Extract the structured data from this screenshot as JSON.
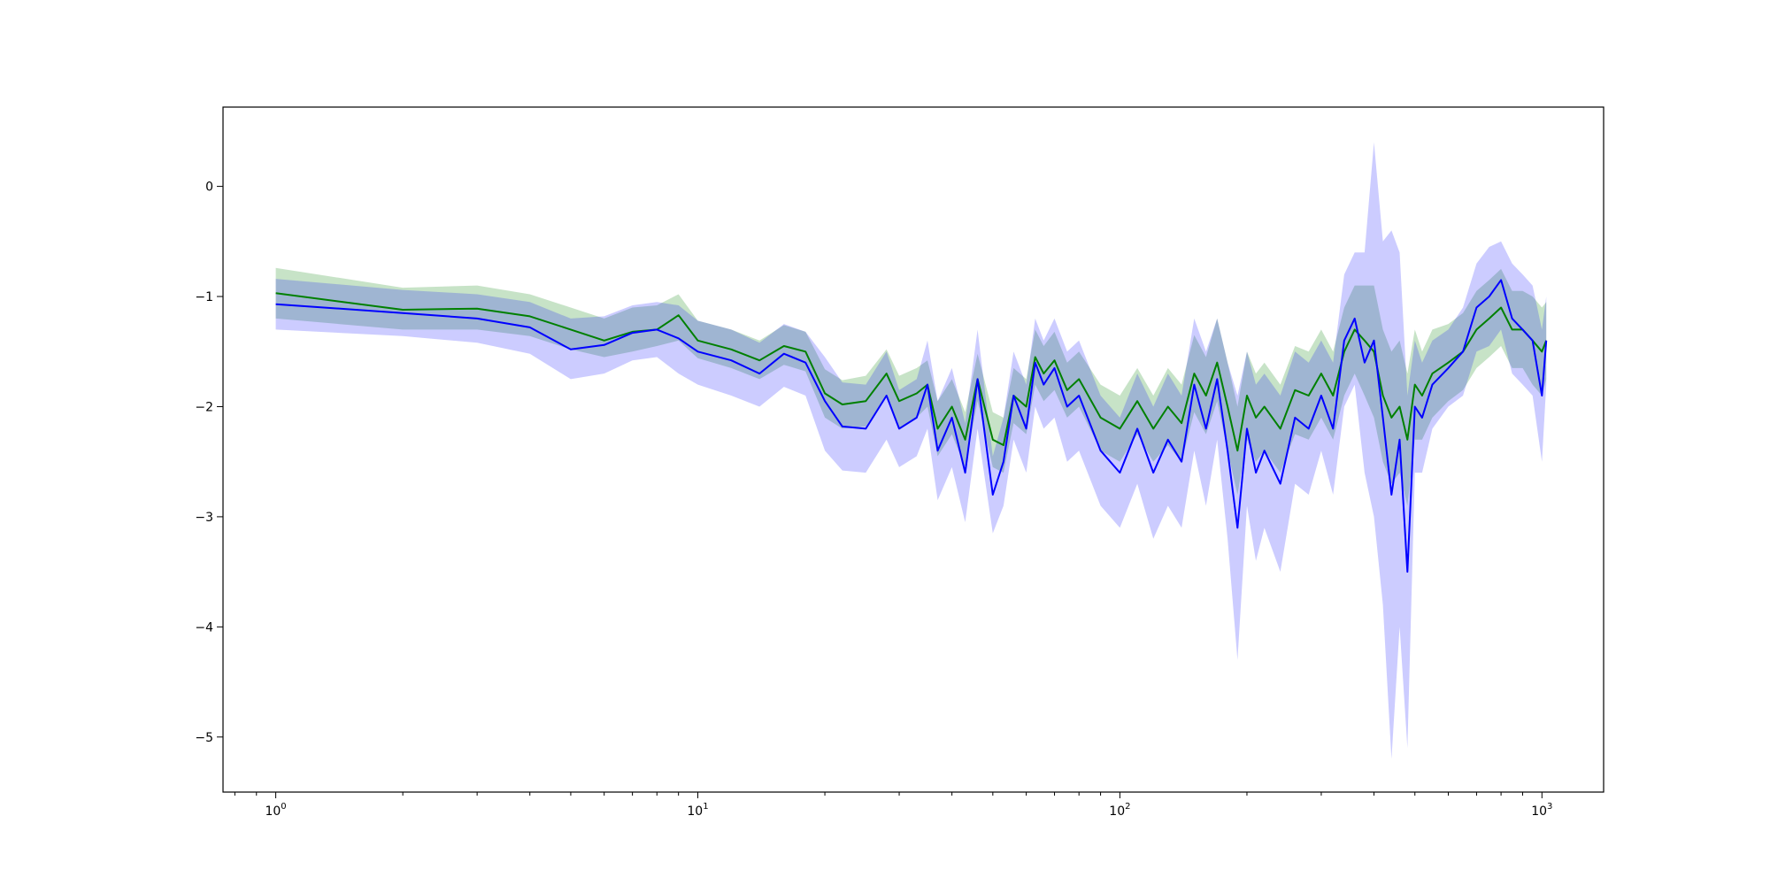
{
  "chart_data": {
    "type": "line",
    "title": "",
    "xlabel": "",
    "ylabel": "",
    "xscale": "log",
    "xlim": [
      0.75,
      1400
    ],
    "ylim": [
      -5.5,
      0.72
    ],
    "grid": false,
    "x_ticks": [
      {
        "value": 1,
        "base": "10",
        "exp": "0"
      },
      {
        "value": 10,
        "base": "10",
        "exp": "1"
      },
      {
        "value": 100,
        "base": "10",
        "exp": "2"
      },
      {
        "value": 1000,
        "base": "10",
        "exp": "3"
      }
    ],
    "y_ticks": [
      {
        "value": 0,
        "label": "0"
      },
      {
        "value": -1,
        "label": "−1"
      },
      {
        "value": -2,
        "label": "−2"
      },
      {
        "value": -3,
        "label": "−3"
      },
      {
        "value": -4,
        "label": "−4"
      },
      {
        "value": -5,
        "label": "−5"
      }
    ],
    "series": [
      {
        "color": "#008000",
        "band_color": "#008000",
        "band_opacity": 0.22,
        "x": [
          1,
          2,
          3,
          4,
          5,
          6,
          7,
          8,
          9,
          10,
          12,
          14,
          16,
          18,
          20,
          22,
          25,
          28,
          30,
          33,
          35,
          37,
          40,
          43,
          46,
          50,
          53,
          56,
          60,
          63,
          66,
          70,
          75,
          80,
          90,
          100,
          110,
          120,
          130,
          140,
          150,
          160,
          170,
          180,
          190,
          200,
          210,
          220,
          240,
          260,
          280,
          300,
          320,
          340,
          360,
          380,
          400,
          420,
          440,
          460,
          480,
          500,
          520,
          550,
          600,
          650,
          700,
          750,
          800,
          850,
          900,
          950,
          1000,
          1024
        ],
        "y": [
          -0.97,
          -1.12,
          -1.11,
          -1.18,
          -1.3,
          -1.4,
          -1.32,
          -1.3,
          -1.17,
          -1.4,
          -1.48,
          -1.58,
          -1.45,
          -1.5,
          -1.88,
          -1.98,
          -1.95,
          -1.7,
          -1.95,
          -1.88,
          -1.8,
          -2.2,
          -2.0,
          -2.3,
          -1.75,
          -2.3,
          -2.35,
          -1.9,
          -2.0,
          -1.55,
          -1.7,
          -1.58,
          -1.85,
          -1.75,
          -2.1,
          -2.2,
          -1.95,
          -2.2,
          -2.0,
          -2.15,
          -1.7,
          -1.9,
          -1.6,
          -2.0,
          -2.4,
          -1.9,
          -2.1,
          -2.0,
          -2.2,
          -1.85,
          -1.9,
          -1.7,
          -1.9,
          -1.5,
          -1.3,
          -1.4,
          -1.5,
          -1.9,
          -2.1,
          -2.0,
          -2.3,
          -1.8,
          -1.9,
          -1.7,
          -1.6,
          -1.5,
          -1.3,
          -1.2,
          -1.1,
          -1.3,
          -1.3,
          -1.4,
          -1.5,
          -1.4
        ],
        "lower": [
          -1.2,
          -1.3,
          -1.3,
          -1.36,
          -1.48,
          -1.55,
          -1.5,
          -1.45,
          -1.4,
          -1.56,
          -1.65,
          -1.75,
          -1.62,
          -1.68,
          -2.1,
          -2.2,
          -2.18,
          -1.9,
          -2.2,
          -2.1,
          -2.0,
          -2.45,
          -2.25,
          -2.55,
          -1.95,
          -2.55,
          -2.6,
          -2.15,
          -2.25,
          -1.8,
          -1.95,
          -1.85,
          -2.1,
          -2.0,
          -2.4,
          -2.5,
          -2.25,
          -2.5,
          -2.35,
          -2.5,
          -2.05,
          -2.25,
          -1.95,
          -2.4,
          -2.8,
          -2.3,
          -2.5,
          -2.4,
          -2.6,
          -2.25,
          -2.3,
          -2.1,
          -2.3,
          -1.9,
          -1.7,
          -1.9,
          -2.1,
          -2.5,
          -2.7,
          -2.6,
          -2.9,
          -2.3,
          -2.3,
          -2.1,
          -1.95,
          -1.85,
          -1.65,
          -1.55,
          -1.45,
          -1.65,
          -1.65,
          -1.8,
          -1.9,
          -1.75
        ],
        "upper": [
          -0.74,
          -0.92,
          -0.9,
          -0.98,
          -1.1,
          -1.2,
          -1.1,
          -1.08,
          -0.98,
          -1.22,
          -1.3,
          -1.4,
          -1.26,
          -1.32,
          -1.66,
          -1.76,
          -1.72,
          -1.48,
          -1.72,
          -1.65,
          -1.58,
          -1.95,
          -1.75,
          -2.05,
          -1.52,
          -2.05,
          -2.1,
          -1.65,
          -1.75,
          -1.3,
          -1.45,
          -1.32,
          -1.6,
          -1.5,
          -1.8,
          -1.9,
          -1.65,
          -1.9,
          -1.65,
          -1.8,
          -1.35,
          -1.55,
          -1.2,
          -1.6,
          -2.0,
          -1.5,
          -1.7,
          -1.6,
          -1.8,
          -1.45,
          -1.5,
          -1.3,
          -1.5,
          -1.1,
          -0.9,
          -0.9,
          -0.9,
          -1.3,
          -1.5,
          -1.4,
          -1.7,
          -1.3,
          -1.5,
          -1.3,
          -1.25,
          -1.15,
          -0.95,
          -0.85,
          -0.75,
          -0.95,
          -0.95,
          -1.0,
          -1.1,
          -1.05
        ]
      },
      {
        "color": "#0000ff",
        "band_color": "#0000ff",
        "band_opacity": 0.2,
        "x": [
          1,
          2,
          3,
          4,
          5,
          6,
          7,
          8,
          9,
          10,
          12,
          14,
          16,
          18,
          20,
          22,
          25,
          28,
          30,
          33,
          35,
          37,
          40,
          43,
          46,
          50,
          53,
          56,
          60,
          63,
          66,
          70,
          75,
          80,
          90,
          100,
          110,
          120,
          130,
          140,
          150,
          160,
          170,
          180,
          190,
          200,
          210,
          220,
          240,
          260,
          280,
          300,
          320,
          340,
          360,
          380,
          400,
          420,
          440,
          460,
          480,
          500,
          520,
          550,
          600,
          650,
          700,
          750,
          800,
          850,
          900,
          950,
          1000,
          1024
        ],
        "y": [
          -1.07,
          -1.15,
          -1.2,
          -1.28,
          -1.48,
          -1.44,
          -1.33,
          -1.3,
          -1.38,
          -1.5,
          -1.58,
          -1.7,
          -1.52,
          -1.6,
          -1.95,
          -2.18,
          -2.2,
          -1.9,
          -2.2,
          -2.1,
          -1.8,
          -2.4,
          -2.1,
          -2.6,
          -1.75,
          -2.8,
          -2.5,
          -1.9,
          -2.2,
          -1.6,
          -1.8,
          -1.65,
          -2.0,
          -1.9,
          -2.4,
          -2.6,
          -2.2,
          -2.6,
          -2.3,
          -2.5,
          -1.8,
          -2.2,
          -1.75,
          -2.4,
          -3.1,
          -2.2,
          -2.6,
          -2.4,
          -2.7,
          -2.1,
          -2.2,
          -1.9,
          -2.2,
          -1.4,
          -1.2,
          -1.6,
          -1.4,
          -2.1,
          -2.8,
          -2.3,
          -3.5,
          -2.0,
          -2.1,
          -1.8,
          -1.65,
          -1.5,
          -1.1,
          -1.0,
          -0.85,
          -1.2,
          -1.3,
          -1.4,
          -1.9,
          -1.4
        ],
        "lower": [
          -1.3,
          -1.36,
          -1.42,
          -1.52,
          -1.75,
          -1.7,
          -1.58,
          -1.55,
          -1.7,
          -1.8,
          -1.9,
          -2.0,
          -1.82,
          -1.9,
          -2.4,
          -2.58,
          -2.6,
          -2.3,
          -2.55,
          -2.45,
          -2.2,
          -2.85,
          -2.55,
          -3.05,
          -2.2,
          -3.15,
          -2.9,
          -2.3,
          -2.6,
          -2.0,
          -2.2,
          -2.1,
          -2.5,
          -2.4,
          -2.9,
          -3.1,
          -2.7,
          -3.2,
          -2.9,
          -3.1,
          -2.4,
          -2.9,
          -2.3,
          -3.2,
          -4.3,
          -2.9,
          -3.4,
          -3.1,
          -3.5,
          -2.7,
          -2.8,
          -2.4,
          -2.8,
          -2.0,
          -1.8,
          -2.6,
          -3.0,
          -3.8,
          -5.2,
          -4.0,
          -5.1,
          -2.6,
          -2.6,
          -2.2,
          -2.0,
          -1.9,
          -1.5,
          -1.45,
          -1.3,
          -1.7,
          -1.8,
          -1.9,
          -2.5,
          -1.8
        ],
        "upper": [
          -0.84,
          -0.94,
          -0.98,
          -1.05,
          -1.2,
          -1.18,
          -1.08,
          -1.05,
          -1.08,
          -1.22,
          -1.3,
          -1.42,
          -1.25,
          -1.32,
          -1.55,
          -1.78,
          -1.8,
          -1.5,
          -1.85,
          -1.75,
          -1.4,
          -1.95,
          -1.65,
          -2.15,
          -1.3,
          -2.45,
          -2.1,
          -1.5,
          -1.8,
          -1.2,
          -1.4,
          -1.2,
          -1.5,
          -1.4,
          -1.9,
          -2.1,
          -1.7,
          -2.0,
          -1.7,
          -1.9,
          -1.2,
          -1.5,
          -1.2,
          -1.6,
          -1.9,
          -1.5,
          -1.8,
          -1.7,
          -1.9,
          -1.5,
          -1.6,
          -1.4,
          -1.6,
          -0.8,
          -0.6,
          -0.6,
          0.4,
          -0.5,
          -0.4,
          -0.6,
          -1.9,
          -1.4,
          -1.6,
          -1.4,
          -1.3,
          -1.1,
          -0.7,
          -0.55,
          -0.5,
          -0.7,
          -0.8,
          -0.9,
          -1.3,
          -1.0
        ]
      }
    ]
  }
}
